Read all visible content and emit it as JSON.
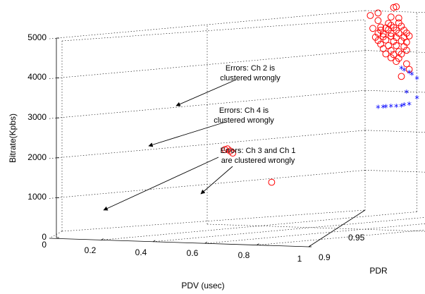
{
  "chart_data": {
    "type": "scatter",
    "title": "",
    "xlabel": "PDV (usec)",
    "ylabel": "PDR",
    "zlabel": "Bitrate(Kpbs)",
    "xlim": [
      0,
      1
    ],
    "ylim": [
      0.9,
      1
    ],
    "zlim": [
      0,
      5000
    ],
    "x_ticks": [
      "0.2",
      "0.4",
      "0.6",
      "0.8",
      "1"
    ],
    "y_ticks": [
      "0.9",
      "0.95"
    ],
    "z_ticks": [
      "0",
      "1000",
      "2000",
      "3000",
      "4000",
      "5000"
    ],
    "origin_x_label": "0",
    "grid": true,
    "colors": {
      "red_circle": "#ff0000",
      "blue_star": "#0000ff"
    },
    "series": [
      {
        "marker": "circle",
        "color": "#ff0000",
        "points": [
          [
            0.05,
            1.0,
            4950
          ],
          [
            0.11,
            1.0,
            5100
          ],
          [
            0.12,
            1.0,
            5120
          ],
          [
            0.02,
            1.0,
            4880
          ],
          [
            0.1,
            1.0,
            4860
          ],
          [
            0.13,
            1.0,
            4840
          ],
          [
            0.05,
            1.0,
            4760
          ],
          [
            0.13,
            1.0,
            4720
          ],
          [
            0.09,
            1.0,
            4700
          ],
          [
            0.1,
            1.0,
            4650
          ],
          [
            0.03,
            1.0,
            4560
          ],
          [
            0.06,
            1.0,
            4600
          ],
          [
            0.08,
            1.0,
            4580
          ],
          [
            0.11,
            1.0,
            4600
          ],
          [
            0.14,
            1.0,
            4640
          ],
          [
            0.06,
            1.0,
            4520
          ],
          [
            0.09,
            1.0,
            4540
          ],
          [
            0.12,
            1.0,
            4530
          ],
          [
            0.15,
            1.0,
            4540
          ],
          [
            0.05,
            1.0,
            4440
          ],
          [
            0.07,
            1.0,
            4430
          ],
          [
            0.1,
            1.0,
            4450
          ],
          [
            0.13,
            1.0,
            4460
          ],
          [
            0.16,
            1.0,
            4470
          ],
          [
            0.04,
            1.0,
            4340
          ],
          [
            0.07,
            1.0,
            4360
          ],
          [
            0.1,
            1.0,
            4380
          ],
          [
            0.12,
            1.0,
            4350
          ],
          [
            0.15,
            1.0,
            4360
          ],
          [
            0.17,
            1.0,
            4400
          ],
          [
            0.05,
            1.0,
            4260
          ],
          [
            0.08,
            1.0,
            4280
          ],
          [
            0.11,
            1.0,
            4250
          ],
          [
            0.14,
            1.0,
            4270
          ],
          [
            0.16,
            1.0,
            4240
          ],
          [
            0.06,
            1.0,
            4170
          ],
          [
            0.09,
            1.0,
            4140
          ],
          [
            0.12,
            1.0,
            4150
          ],
          [
            0.15,
            1.0,
            4130
          ],
          [
            0.07,
            1.0,
            4060
          ],
          [
            0.1,
            1.0,
            4020
          ],
          [
            0.13,
            1.0,
            4000
          ],
          [
            0.16,
            1.0,
            4040
          ],
          [
            0.08,
            1.0,
            3930
          ],
          [
            0.11,
            1.0,
            3920
          ],
          [
            0.14,
            1.0,
            3940
          ],
          [
            0.1,
            1.0,
            3840
          ],
          [
            0.13,
            1.0,
            3830
          ],
          [
            0.16,
            1.0,
            3700
          ],
          [
            0.12,
            1.0,
            3750
          ],
          [
            0.17,
            1.0,
            3560
          ],
          [
            0.14,
            1.0,
            3380
          ],
          [
            0.2,
            0.94,
            2000
          ],
          [
            0.19,
            0.94,
            1980
          ],
          [
            0.21,
            0.94,
            1950
          ],
          [
            0.22,
            0.94,
            1900
          ],
          [
            0.41,
            1.0,
            1050
          ],
          [
            0.43,
            1.0,
            1050
          ],
          [
            0.45,
            1.0,
            1050
          ],
          [
            0.47,
            1.0,
            1050
          ],
          [
            0.5,
            1.0,
            1050
          ],
          [
            0.53,
            1.0,
            1050
          ],
          [
            0.56,
            1.0,
            1050
          ],
          [
            0.58,
            1.0,
            1050
          ],
          [
            0.61,
            1.0,
            1050
          ],
          [
            0.63,
            1.0,
            1050
          ],
          [
            0.66,
            1.0,
            1050
          ],
          [
            0.68,
            1.0,
            1050
          ],
          [
            0.7,
            1.0,
            1050
          ],
          [
            0.74,
            1.0,
            1030
          ],
          [
            0.41,
            1.0,
            1200
          ],
          [
            0.37,
            0.94,
            1200
          ],
          [
            0.9,
            1.0,
            1000
          ],
          [
            0.98,
            1.0,
            1050
          ],
          [
            1.0,
            1.0,
            1050
          ],
          [
            0.95,
            0.96,
            1050
          ]
        ]
      },
      {
        "marker": "star",
        "color": "#0000ff",
        "points": [
          [
            0.14,
            1.0,
            3550
          ],
          [
            0.15,
            1.0,
            3500
          ],
          [
            0.17,
            1.0,
            3450
          ],
          [
            0.18,
            1.0,
            3400
          ],
          [
            0.2,
            1.0,
            3300
          ],
          [
            0.16,
            1.0,
            2950
          ],
          [
            0.2,
            1.0,
            2820
          ],
          [
            0.05,
            1.0,
            2550
          ],
          [
            0.07,
            1.0,
            2560
          ],
          [
            0.08,
            1.0,
            2570
          ],
          [
            0.1,
            1.0,
            2580
          ],
          [
            0.12,
            1.0,
            2590
          ],
          [
            0.14,
            1.0,
            2600
          ],
          [
            0.15,
            1.0,
            2630
          ],
          [
            0.17,
            1.0,
            2650
          ]
        ]
      }
    ],
    "annotations": [
      {
        "lines": [
          "Errors: Ch 2 is",
          "clustered wrongly"
        ]
      },
      {
        "lines": [
          "Errors: Ch 4 is",
          "clustered wrongly"
        ]
      },
      {
        "lines": [
          "Errors: Ch 3 and Ch 1",
          "are clustered wrongly"
        ]
      }
    ]
  }
}
